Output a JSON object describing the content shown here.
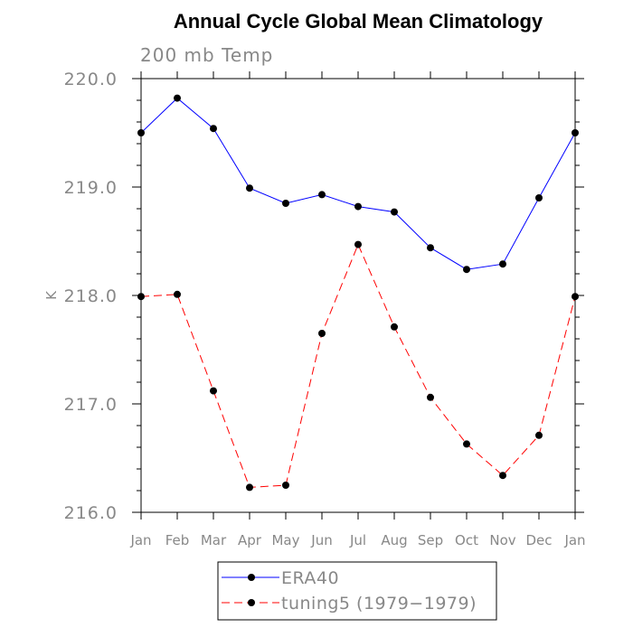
{
  "chart_data": {
    "type": "line",
    "title": "Annual Cycle Global Mean Climatology",
    "subtitle": "200 mb Temp",
    "xlabel": "",
    "ylabel": "K",
    "categories": [
      "Jan",
      "Feb",
      "Mar",
      "Apr",
      "May",
      "Jun",
      "Jul",
      "Aug",
      "Sep",
      "Oct",
      "Nov",
      "Dec",
      "Jan"
    ],
    "ylim": [
      216.0,
      220.0
    ],
    "yticks": [
      216.0,
      217.0,
      218.0,
      219.0,
      220.0
    ],
    "ytick_labels": [
      "216.0",
      "217.0",
      "218.0",
      "219.0",
      "220.0"
    ],
    "grid": false,
    "legend_position": "bottom-center",
    "series": [
      {
        "name": "ERA40",
        "color": "#0000ff",
        "line_style": "solid",
        "marker": "filled-circle",
        "values": [
          219.5,
          219.82,
          219.54,
          218.99,
          218.85,
          218.93,
          218.82,
          218.77,
          218.44,
          218.24,
          218.29,
          218.9,
          219.5
        ]
      },
      {
        "name": "tuning5 (1979−1979)",
        "color": "#ff0000",
        "line_style": "dashed",
        "marker": "filled-circle",
        "values": [
          217.99,
          218.01,
          217.12,
          216.23,
          216.25,
          217.65,
          218.47,
          217.71,
          217.06,
          216.63,
          216.34,
          216.71,
          217.99
        ]
      }
    ]
  }
}
